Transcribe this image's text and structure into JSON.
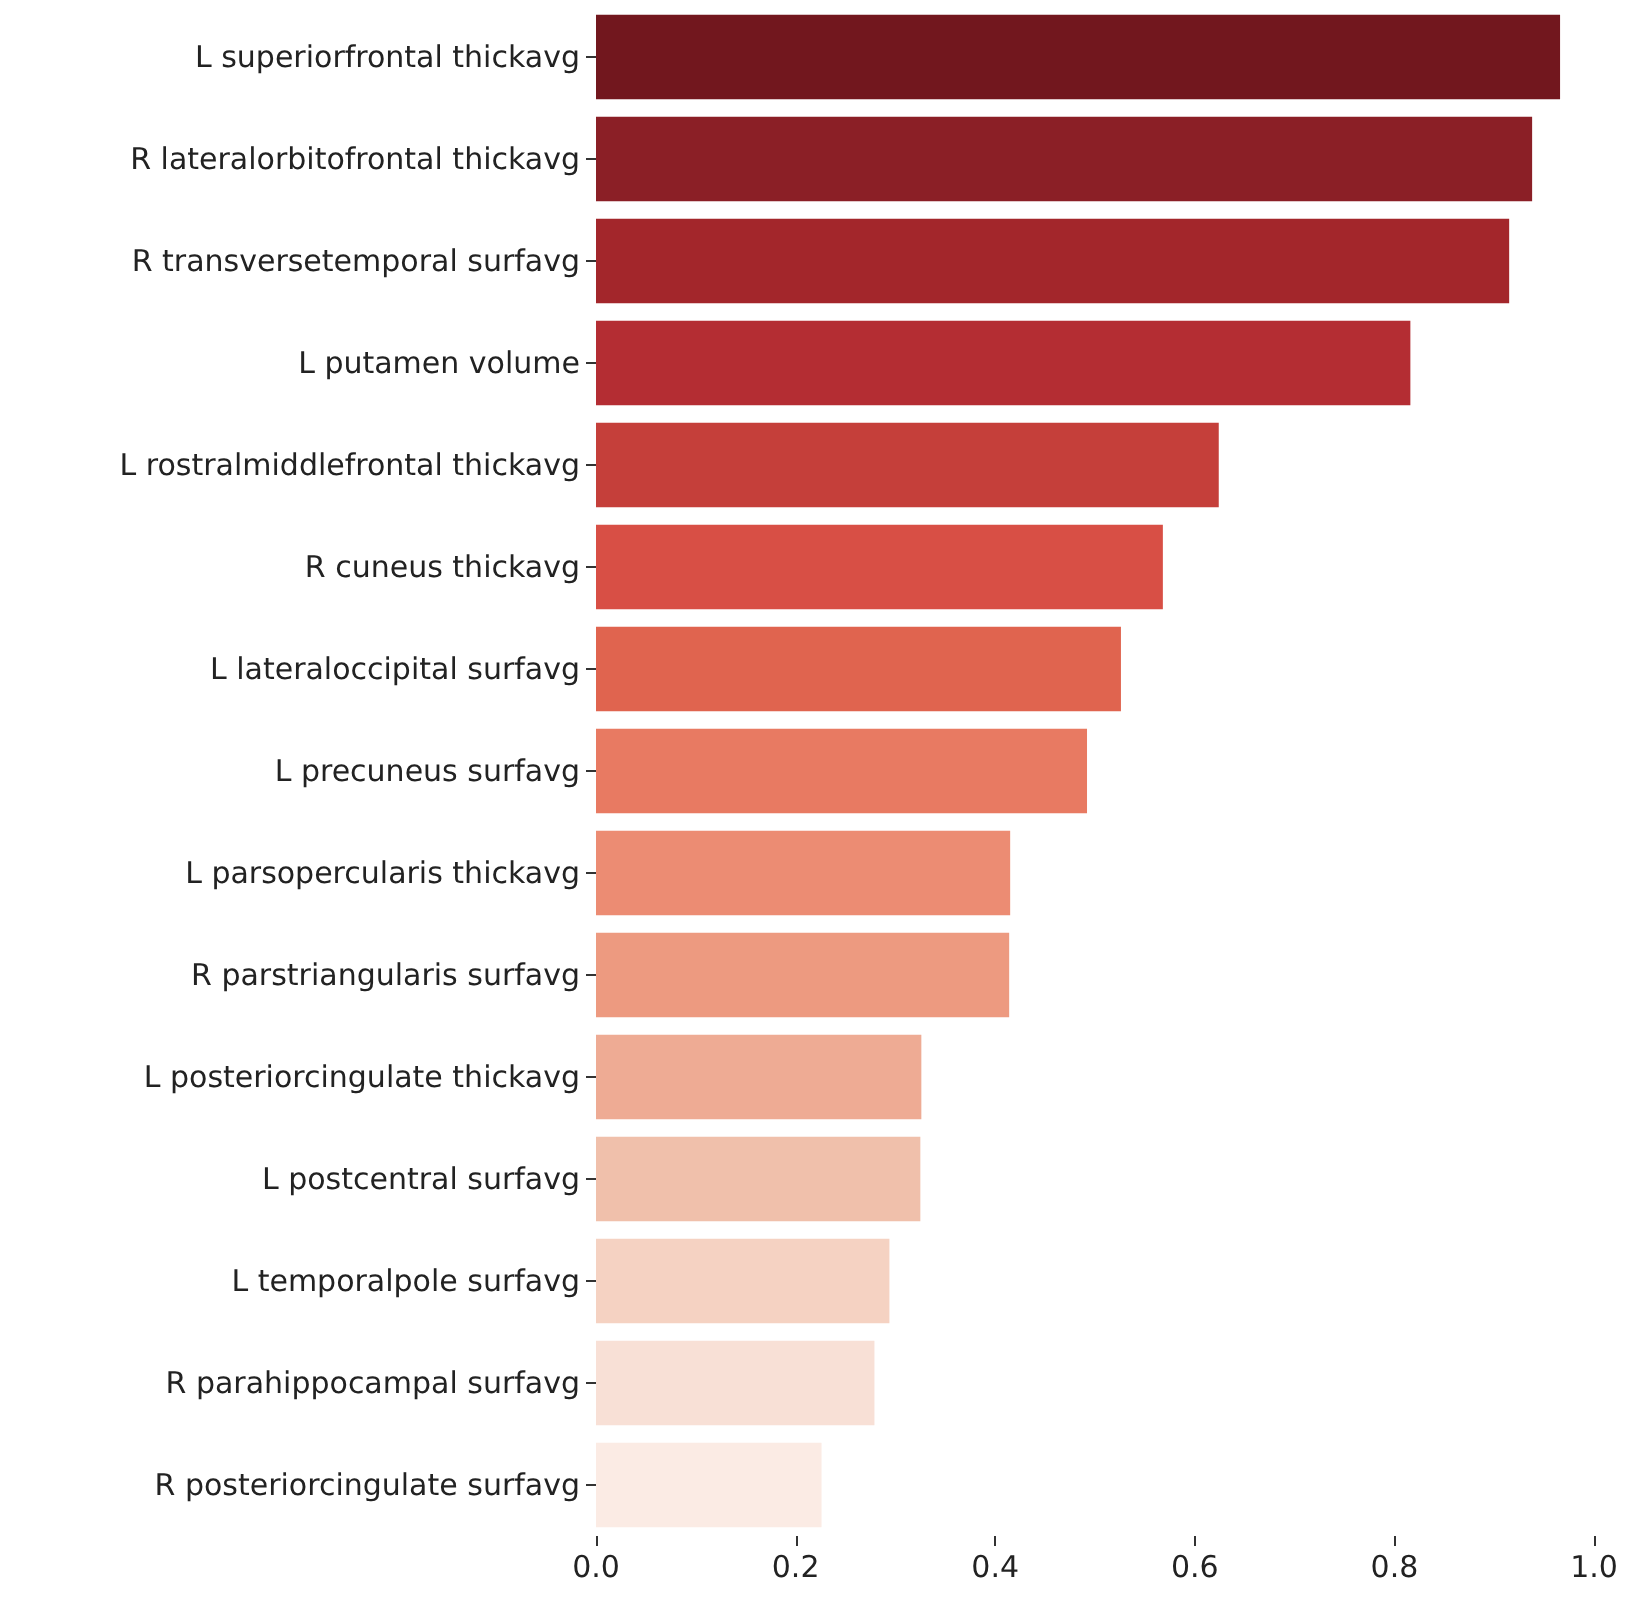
{
  "chart_data": {
    "type": "bar",
    "orientation": "horizontal",
    "categories": [
      "L superiorfrontal thickavg",
      "R lateralorbitofrontal thickavg",
      "R transversetemporal surfavg",
      "L putamen volume",
      "L rostralmiddlefrontal thickavg",
      "R cuneus thickavg",
      "L lateraloccipital surfavg",
      "L precuneus surfavg",
      "L parsopercularis thickavg",
      "R parstriangularis surfavg",
      "L posteriorcingulate thickavg",
      "L postcentral surfavg",
      "L temporalpole surfavg",
      "R parahippocampal surfavg",
      "R posteriorcingulate surfavg"
    ],
    "values": [
      0.966,
      0.938,
      0.915,
      0.816,
      0.624,
      0.568,
      0.526,
      0.492,
      0.415,
      0.414,
      0.326,
      0.325,
      0.294,
      0.279,
      0.226
    ],
    "colors": [
      "#72171e",
      "#8b1f26",
      "#a3262b",
      "#b42d33",
      "#c53f3a",
      "#d84f45",
      "#e0644f",
      "#e87a62",
      "#ec8c73",
      "#ed9a80",
      "#eeab94",
      "#f0c0ab",
      "#f5d2c2",
      "#f8e0d6",
      "#fbebe4"
    ],
    "xlim": [
      0,
      1
    ],
    "xticks": [
      {
        "value": 0,
        "label": "0.0"
      },
      {
        "value": 0.2,
        "label": "0.2"
      },
      {
        "value": 0.4,
        "label": "0.4"
      },
      {
        "value": 0.6,
        "label": "0.6"
      },
      {
        "value": 0.8,
        "label": "0.8"
      },
      {
        "value": 1,
        "label": "1.0"
      }
    ],
    "grid": false
  }
}
